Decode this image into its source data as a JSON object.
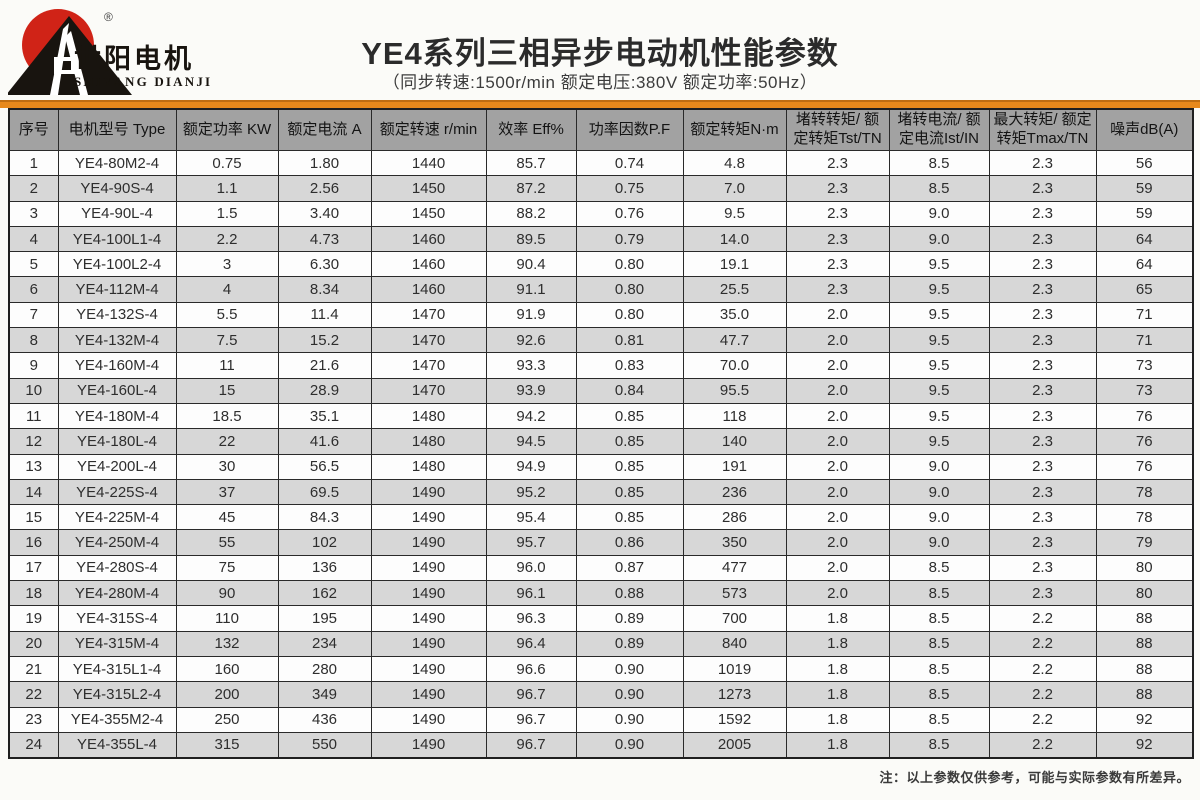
{
  "logo": {
    "cn_name": "世阳电机",
    "en_name": "SHIYANG DIANJI",
    "registered_mark": "®"
  },
  "header": {
    "title": "YE4系列三相异步电动机性能参数",
    "subtitle": "（同步转速:1500r/min   额定电压:380V   额定功率:50Hz）"
  },
  "colors": {
    "accent_orange": "#e8891c",
    "header_gray": "#a2a2a2",
    "row_alt_gray": "#d7d7d7",
    "logo_red": "#d02317",
    "logo_black": "#18140f"
  },
  "table": {
    "headers": [
      "序号",
      "电机型号 Type",
      "额定功率 KW",
      "额定电流 A",
      "额定转速 r/min",
      "效率 Eff%",
      "功率因数P.F",
      "额定转矩N·m",
      "堵转转矩/ 额定转矩Tst/TN",
      "堵转电流/ 额定电流Ist/IN",
      "最大转矩/ 额定转矩Tmax/TN",
      "噪声dB(A)"
    ],
    "rows": [
      [
        "1",
        "YE4-80M2-4",
        "0.75",
        "1.80",
        "1440",
        "85.7",
        "0.74",
        "4.8",
        "2.3",
        "8.5",
        "2.3",
        "56"
      ],
      [
        "2",
        "YE4-90S-4",
        "1.1",
        "2.56",
        "1450",
        "87.2",
        "0.75",
        "7.0",
        "2.3",
        "8.5",
        "2.3",
        "59"
      ],
      [
        "3",
        "YE4-90L-4",
        "1.5",
        "3.40",
        "1450",
        "88.2",
        "0.76",
        "9.5",
        "2.3",
        "9.0",
        "2.3",
        "59"
      ],
      [
        "4",
        "YE4-100L1-4",
        "2.2",
        "4.73",
        "1460",
        "89.5",
        "0.79",
        "14.0",
        "2.3",
        "9.0",
        "2.3",
        "64"
      ],
      [
        "5",
        "YE4-100L2-4",
        "3",
        "6.30",
        "1460",
        "90.4",
        "0.80",
        "19.1",
        "2.3",
        "9.5",
        "2.3",
        "64"
      ],
      [
        "6",
        "YE4-112M-4",
        "4",
        "8.34",
        "1460",
        "91.1",
        "0.80",
        "25.5",
        "2.3",
        "9.5",
        "2.3",
        "65"
      ],
      [
        "7",
        "YE4-132S-4",
        "5.5",
        "11.4",
        "1470",
        "91.9",
        "0.80",
        "35.0",
        "2.0",
        "9.5",
        "2.3",
        "71"
      ],
      [
        "8",
        "YE4-132M-4",
        "7.5",
        "15.2",
        "1470",
        "92.6",
        "0.81",
        "47.7",
        "2.0",
        "9.5",
        "2.3",
        "71"
      ],
      [
        "9",
        "YE4-160M-4",
        "11",
        "21.6",
        "1470",
        "93.3",
        "0.83",
        "70.0",
        "2.0",
        "9.5",
        "2.3",
        "73"
      ],
      [
        "10",
        "YE4-160L-4",
        "15",
        "28.9",
        "1470",
        "93.9",
        "0.84",
        "95.5",
        "2.0",
        "9.5",
        "2.3",
        "73"
      ],
      [
        "11",
        "YE4-180M-4",
        "18.5",
        "35.1",
        "1480",
        "94.2",
        "0.85",
        "118",
        "2.0",
        "9.5",
        "2.3",
        "76"
      ],
      [
        "12",
        "YE4-180L-4",
        "22",
        "41.6",
        "1480",
        "94.5",
        "0.85",
        "140",
        "2.0",
        "9.5",
        "2.3",
        "76"
      ],
      [
        "13",
        "YE4-200L-4",
        "30",
        "56.5",
        "1480",
        "94.9",
        "0.85",
        "191",
        "2.0",
        "9.0",
        "2.3",
        "76"
      ],
      [
        "14",
        "YE4-225S-4",
        "37",
        "69.5",
        "1490",
        "95.2",
        "0.85",
        "236",
        "2.0",
        "9.0",
        "2.3",
        "78"
      ],
      [
        "15",
        "YE4-225M-4",
        "45",
        "84.3",
        "1490",
        "95.4",
        "0.85",
        "286",
        "2.0",
        "9.0",
        "2.3",
        "78"
      ],
      [
        "16",
        "YE4-250M-4",
        "55",
        "102",
        "1490",
        "95.7",
        "0.86",
        "350",
        "2.0",
        "9.0",
        "2.3",
        "79"
      ],
      [
        "17",
        "YE4-280S-4",
        "75",
        "136",
        "1490",
        "96.0",
        "0.87",
        "477",
        "2.0",
        "8.5",
        "2.3",
        "80"
      ],
      [
        "18",
        "YE4-280M-4",
        "90",
        "162",
        "1490",
        "96.1",
        "0.88",
        "573",
        "2.0",
        "8.5",
        "2.3",
        "80"
      ],
      [
        "19",
        "YE4-315S-4",
        "110",
        "195",
        "1490",
        "96.3",
        "0.89",
        "700",
        "1.8",
        "8.5",
        "2.2",
        "88"
      ],
      [
        "20",
        "YE4-315M-4",
        "132",
        "234",
        "1490",
        "96.4",
        "0.89",
        "840",
        "1.8",
        "8.5",
        "2.2",
        "88"
      ],
      [
        "21",
        "YE4-315L1-4",
        "160",
        "280",
        "1490",
        "96.6",
        "0.90",
        "1019",
        "1.8",
        "8.5",
        "2.2",
        "88"
      ],
      [
        "22",
        "YE4-315L2-4",
        "200",
        "349",
        "1490",
        "96.7",
        "0.90",
        "1273",
        "1.8",
        "8.5",
        "2.2",
        "88"
      ],
      [
        "23",
        "YE4-355M2-4",
        "250",
        "436",
        "1490",
        "96.7",
        "0.90",
        "1592",
        "1.8",
        "8.5",
        "2.2",
        "92"
      ],
      [
        "24",
        "YE4-355L-4",
        "315",
        "550",
        "1490",
        "96.7",
        "0.90",
        "2005",
        "1.8",
        "8.5",
        "2.2",
        "92"
      ]
    ]
  },
  "footnote": "注：以上参数仅供参考，可能与实际参数有所差异。"
}
